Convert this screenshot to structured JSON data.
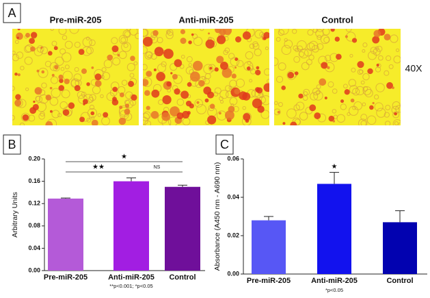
{
  "panel_a": {
    "label": "A",
    "images": [
      "Pre-miR-205",
      "Anti-miR-205",
      "Control"
    ],
    "magnification": "40X"
  },
  "chart_data": [
    {
      "type": "bar",
      "panel_label": "B",
      "y_label": "Arbitrary Units",
      "categories": [
        "Pre-miR-205",
        "Anti-miR-205",
        "Control"
      ],
      "values": [
        0.129,
        0.16,
        0.15
      ],
      "errors": [
        0.001,
        0.006,
        0.003
      ],
      "colors": [
        "#b45ad8",
        "#a21ee2",
        "#6f0f9a"
      ],
      "ylim": [
        0,
        0.2
      ],
      "yticks": [
        {
          "value": 0,
          "label": "0.00"
        },
        {
          "value": 0.04,
          "label": "0.04"
        },
        {
          "value": 0.08,
          "label": "0.08"
        },
        {
          "value": 0.12,
          "label": "0.12"
        },
        {
          "value": 0.16,
          "label": "0.16"
        },
        {
          "value": 0.2,
          "label": "0.20"
        }
      ],
      "annotations": [
        "★",
        "★★",
        "NS"
      ],
      "note": "**p<0.001; *p<0.05"
    },
    {
      "type": "bar",
      "panel_label": "C",
      "y_label": "Absorbance (A450 nm - A690 nm)",
      "categories": [
        "Pre-miR-205",
        "Anti-miR-205",
        "Control"
      ],
      "values": [
        0.028,
        0.047,
        0.027
      ],
      "errors": [
        0.002,
        0.006,
        0.006
      ],
      "colors": [
        "#5757f5",
        "#1212ee",
        "#0202b0"
      ],
      "ylim": [
        0,
        0.06
      ],
      "yticks": [
        {
          "value": 0,
          "label": "0.00"
        },
        {
          "value": 0.02,
          "label": "0.02"
        },
        {
          "value": 0.04,
          "label": "0.04"
        },
        {
          "value": 0.06,
          "label": "0.06"
        }
      ],
      "annotations": [
        "★"
      ],
      "note": "*p<0.05"
    }
  ]
}
